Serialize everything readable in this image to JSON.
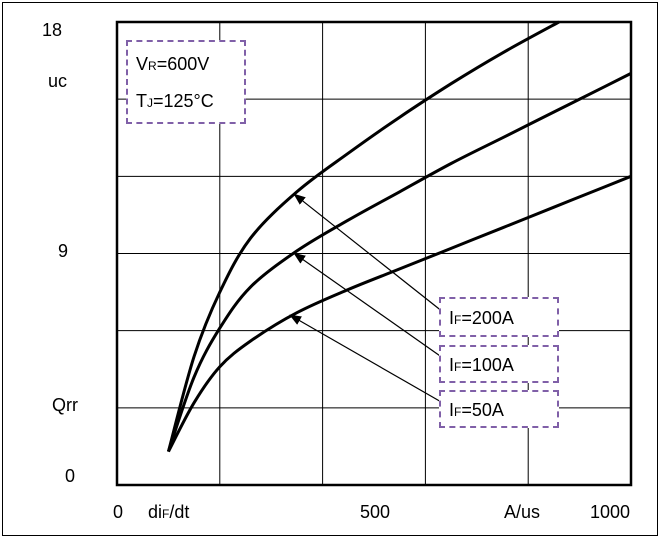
{
  "chart_data": {
    "type": "line",
    "xlim": [
      0,
      1000
    ],
    "ylim": [
      0,
      18
    ],
    "grid": true,
    "y_tick_labels": [
      "18",
      "uc",
      "9",
      "Qrr",
      "0"
    ],
    "x_tick_labels": [
      "0",
      "di",
      "F",
      "/dt",
      "500",
      "A/us",
      "1000"
    ],
    "conditions": {
      "vr": {
        "main": "V",
        "sub": "R",
        "rest": "=600V"
      },
      "tj": {
        "main": "T",
        "sub": "J",
        "rest": "=125°C"
      }
    },
    "series": [
      {
        "name": "IF=200A",
        "label": {
          "main": "I",
          "sub": "F",
          "rest": "=200A"
        },
        "x": [
          100,
          150,
          200,
          260,
          350,
          450,
          550,
          650,
          750,
          860
        ],
        "y": [
          1.3,
          5.0,
          7.5,
          9.6,
          11.4,
          12.9,
          14.3,
          15.6,
          16.8,
          18.0
        ]
      },
      {
        "name": "IF=100A",
        "label": {
          "main": "I",
          "sub": "F",
          "rest": "=100A"
        },
        "x": [
          100,
          150,
          200,
          260,
          350,
          450,
          550,
          650,
          750,
          850,
          950,
          1000
        ],
        "y": [
          1.3,
          4.2,
          6.1,
          7.7,
          9.1,
          10.3,
          11.4,
          12.5,
          13.5,
          14.5,
          15.5,
          16.0
        ]
      },
      {
        "name": "IF=50A",
        "label": {
          "main": "I",
          "sub": "F",
          "rest": "=50A"
        },
        "x": [
          100,
          150,
          200,
          260,
          350,
          450,
          550,
          650,
          750,
          850,
          950,
          1000
        ],
        "y": [
          1.3,
          3.2,
          4.6,
          5.6,
          6.7,
          7.6,
          8.4,
          9.2,
          10.0,
          10.8,
          11.6,
          12.0
        ]
      }
    ],
    "arrows": [
      {
        "series": "IF=200A",
        "x": 345,
        "y": 11.3
      },
      {
        "series": "IF=100A",
        "x": 345,
        "y": 9.0
      },
      {
        "series": "IF=50A",
        "x": 337,
        "y": 6.6
      }
    ]
  },
  "colors": {
    "line": "#000000",
    "grid": "#000000",
    "box_border": "#8060a8"
  }
}
